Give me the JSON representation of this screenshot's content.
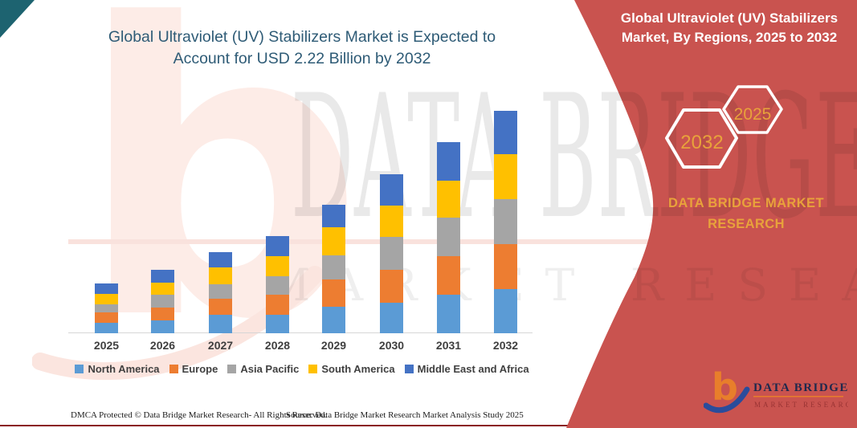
{
  "page": {
    "title_line1": "Global Ultraviolet (UV) Stabilizers Market is Expected to",
    "title_line2": "Account for USD 2.22 Billion by 2032"
  },
  "banner": {
    "heading_line1": "Global Ultraviolet (UV) Stabilizers",
    "heading_line2": "Market, By Regions, 2025 to 2032",
    "hex_large_label": "2032",
    "hex_small_label": "2025",
    "brand_line1": "DATA BRIDGE MARKET",
    "brand_line2": "RESEARCH",
    "bg_color": "#C9534F",
    "gold_color": "#E8A23B"
  },
  "watermark": {
    "letter": "b",
    "big_text": "DATA BRIDGE",
    "sub_text": "MARKET RESEARCH"
  },
  "chart_data": {
    "type": "bar",
    "stacked": true,
    "title": "Global Ultraviolet (UV) Stabilizers Market is Expected to Account for USD 2.22 Billion by 2032",
    "unit": "USD billion (estimated; 2032 total anchored to USD 2.22 billion stated in title)",
    "categories": [
      "2025",
      "2026",
      "2027",
      "2028",
      "2029",
      "2030",
      "2031",
      "2032"
    ],
    "series": [
      {
        "name": "North America",
        "color": "#5B9BD5",
        "values": [
          0.1,
          0.13,
          0.18,
          0.18,
          0.26,
          0.3,
          0.38,
          0.44
        ]
      },
      {
        "name": "Europe",
        "color": "#ED7D31",
        "values": [
          0.1,
          0.13,
          0.16,
          0.2,
          0.27,
          0.33,
          0.38,
          0.45
        ]
      },
      {
        "name": "Asia Pacific",
        "color": "#A5A5A5",
        "values": [
          0.08,
          0.13,
          0.14,
          0.18,
          0.24,
          0.33,
          0.38,
          0.45
        ]
      },
      {
        "name": "South America",
        "color": "#FFC000",
        "values": [
          0.1,
          0.12,
          0.17,
          0.2,
          0.28,
          0.31,
          0.37,
          0.45
        ]
      },
      {
        "name": "Middle East and Africa",
        "color": "#4472C4",
        "values": [
          0.1,
          0.13,
          0.15,
          0.2,
          0.22,
          0.31,
          0.38,
          0.43
        ]
      }
    ],
    "totals": [
      0.48,
      0.64,
      0.8,
      0.96,
      1.27,
      1.58,
      1.89,
      2.22
    ],
    "ylim": [
      0,
      2.4
    ],
    "y_axis_visible": false,
    "gridlines": false,
    "legend_position": "bottom"
  },
  "footer": {
    "dmca": "DMCA Protected © Data Bridge Market Research-  All Rights Reserved.",
    "source": "Source: Data Bridge Market Research  Market Analysis Study 2025"
  },
  "logo": {
    "glyph": "b",
    "name": "DATA BRIDGE",
    "tagline": "MARKET RESEARCH"
  }
}
